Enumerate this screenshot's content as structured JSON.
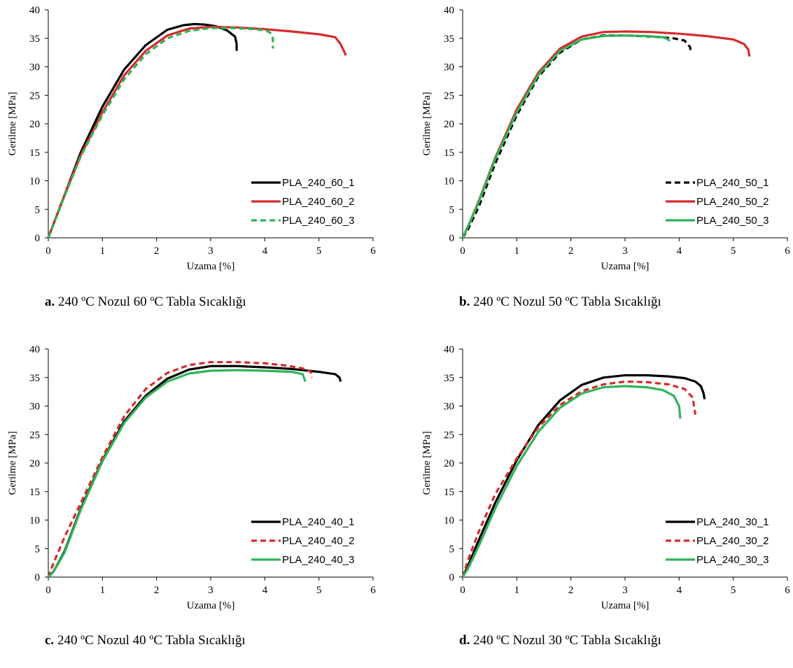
{
  "chart_data": [
    {
      "type": "line",
      "panel_label": "a.",
      "caption": "240 ºC Nozul 60 ºC Tabla Sıcaklığı",
      "xlabel": "Uzama [%]",
      "ylabel": "Gerilme [MPa]",
      "xlim": [
        0,
        6
      ],
      "ylim": [
        0,
        40
      ],
      "xticks": [
        0,
        1,
        2,
        3,
        4,
        5,
        6
      ],
      "yticks": [
        0,
        5,
        10,
        15,
        20,
        25,
        30,
        35,
        40
      ],
      "legend_position": "bottom-right",
      "series": [
        {
          "name": "PLA_240_60_1",
          "color": "#000000",
          "dash": "solid",
          "x": [
            0,
            0.1,
            0.3,
            0.6,
            1.0,
            1.4,
            1.8,
            2.2,
            2.5,
            2.7,
            2.9,
            3.1,
            3.3,
            3.45,
            3.48,
            3.48
          ],
          "y": [
            0,
            2.5,
            7.5,
            15,
            23,
            29.5,
            33.8,
            36.5,
            37.3,
            37.5,
            37.4,
            37.1,
            36.4,
            35.3,
            34,
            32.8
          ]
        },
        {
          "name": "PLA_240_60_2",
          "color": "#d62a2a",
          "dash": "solid",
          "x": [
            0,
            0.1,
            0.3,
            0.6,
            1.0,
            1.4,
            1.8,
            2.2,
            2.6,
            3.0,
            3.5,
            4.0,
            4.5,
            5.0,
            5.3,
            5.4,
            5.5
          ],
          "y": [
            0,
            2.5,
            7.5,
            14.5,
            22,
            28.5,
            32.8,
            35.5,
            36.7,
            37.0,
            36.9,
            36.6,
            36.2,
            35.7,
            35.2,
            34,
            32
          ]
        },
        {
          "name": "PLA_240_60_3",
          "color": "#2fb35a",
          "dash": "dashed",
          "x": [
            0,
            0.1,
            0.3,
            0.6,
            1.0,
            1.4,
            1.8,
            2.2,
            2.6,
            3.0,
            3.4,
            3.8,
            4.0,
            4.1,
            4.15,
            4.15
          ],
          "y": [
            0,
            2.4,
            7.3,
            14.3,
            21.5,
            27.8,
            32.2,
            35.0,
            36.3,
            36.8,
            36.8,
            36.6,
            36.4,
            36.0,
            35,
            33.2
          ]
        }
      ]
    },
    {
      "type": "line",
      "panel_label": "b.",
      "caption": "240 ºC Nozul 50 ºC Tabla Sıcaklığı",
      "xlabel": "Uzama [%]",
      "ylabel": "Gerilme [MPa]",
      "xlim": [
        0,
        6
      ],
      "ylim": [
        0,
        40
      ],
      "xticks": [
        0,
        1,
        2,
        3,
        4,
        5,
        6
      ],
      "yticks": [
        0,
        5,
        10,
        15,
        20,
        25,
        30,
        35,
        40
      ],
      "legend_position": "bottom-right",
      "series": [
        {
          "name": "PLA_240_50_1",
          "color": "#000000",
          "dash": "dashed",
          "x": [
            0,
            0.1,
            0.3,
            0.6,
            1.0,
            1.4,
            1.8,
            2.2,
            2.6,
            3.0,
            3.5,
            3.9,
            4.1,
            4.2,
            4.22
          ],
          "y": [
            0,
            1.5,
            5.5,
            13,
            21.5,
            28.3,
            32.5,
            34.8,
            35.5,
            35.5,
            35.3,
            35.0,
            34.6,
            33.5,
            32.5
          ]
        },
        {
          "name": "PLA_240_50_2",
          "color": "#d62a2a",
          "dash": "solid",
          "x": [
            0,
            0.1,
            0.3,
            0.6,
            1.0,
            1.4,
            1.8,
            2.2,
            2.6,
            3.0,
            3.5,
            4.0,
            4.5,
            5.0,
            5.2,
            5.28,
            5.3
          ],
          "y": [
            0,
            2,
            6.5,
            14,
            22.5,
            29,
            33.2,
            35.3,
            36.1,
            36.2,
            36.1,
            35.8,
            35.4,
            34.8,
            34,
            33,
            31.8
          ]
        },
        {
          "name": "PLA_240_50_3",
          "color": "#2fb35a",
          "dash": "solid",
          "x": [
            0,
            0.1,
            0.3,
            0.6,
            1.0,
            1.4,
            1.8,
            2.2,
            2.6,
            3.0,
            3.4,
            3.7,
            3.8,
            3.82
          ],
          "y": [
            0,
            2,
            6.3,
            13.8,
            22,
            28.6,
            32.8,
            34.8,
            35.4,
            35.5,
            35.4,
            35.2,
            34.8,
            34.5
          ]
        }
      ]
    },
    {
      "type": "line",
      "panel_label": "c.",
      "caption": "240 ºC Nozul 40 ºC Tabla Sıcaklığı",
      "xlabel": "Uzama [%]",
      "ylabel": "Gerilme [MPa]",
      "xlim": [
        0,
        6
      ],
      "ylim": [
        0,
        40
      ],
      "xticks": [
        0,
        1,
        2,
        3,
        4,
        5,
        6
      ],
      "yticks": [
        0,
        5,
        10,
        15,
        20,
        25,
        30,
        35,
        40
      ],
      "legend_position": "bottom-right",
      "series": [
        {
          "name": "PLA_240_40_1",
          "color": "#000000",
          "dash": "solid",
          "x": [
            0,
            0.1,
            0.3,
            0.6,
            1.0,
            1.4,
            1.8,
            2.2,
            2.6,
            3.0,
            3.5,
            4.0,
            4.5,
            5.0,
            5.3,
            5.38,
            5.4
          ],
          "y": [
            0,
            1,
            4.5,
            12,
            20.5,
            27.3,
            31.8,
            34.8,
            36.4,
            37.0,
            37.0,
            36.8,
            36.5,
            36.0,
            35.6,
            35,
            34.3
          ]
        },
        {
          "name": "PLA_240_40_2",
          "color": "#d62a2a",
          "dash": "dashed",
          "x": [
            0,
            0.1,
            0.3,
            0.6,
            1.0,
            1.4,
            1.8,
            2.2,
            2.6,
            3.0,
            3.5,
            4.0,
            4.4,
            4.7,
            4.85,
            4.87
          ],
          "y": [
            0,
            2.5,
            7,
            13,
            21,
            28.2,
            33,
            35.8,
            37.2,
            37.7,
            37.7,
            37.5,
            37.1,
            36.6,
            36,
            35
          ]
        },
        {
          "name": "PLA_240_40_3",
          "color": "#2fb35a",
          "dash": "solid",
          "x": [
            0,
            0.1,
            0.3,
            0.6,
            1.0,
            1.4,
            1.8,
            2.2,
            2.6,
            3.0,
            3.5,
            4.0,
            4.5,
            4.7,
            4.75
          ],
          "y": [
            0,
            1,
            4.3,
            11.8,
            20.3,
            27,
            31.5,
            34.3,
            35.7,
            36.2,
            36.3,
            36.2,
            36.0,
            35.6,
            34.3
          ]
        }
      ]
    },
    {
      "type": "line",
      "panel_label": "d.",
      "caption": "240 ºC Nozul 30 ºC Tabla Sıcaklığı",
      "xlabel": "Uzama [%]",
      "ylabel": "Gerilme [MPa]",
      "xlim": [
        0,
        6
      ],
      "ylim": [
        0,
        40
      ],
      "xticks": [
        0,
        1,
        2,
        3,
        4,
        5,
        6
      ],
      "yticks": [
        0,
        5,
        10,
        15,
        20,
        25,
        30,
        35,
        40
      ],
      "legend_position": "bottom-right",
      "series": [
        {
          "name": "PLA_240_30_1",
          "color": "#000000",
          "dash": "solid",
          "x": [
            0,
            0.1,
            0.3,
            0.6,
            1.0,
            1.4,
            1.8,
            2.2,
            2.6,
            3.0,
            3.4,
            3.8,
            4.1,
            4.3,
            4.4,
            4.45,
            4.47
          ],
          "y": [
            0,
            2,
            6.5,
            13,
            20.5,
            26.7,
            31,
            33.7,
            35.0,
            35.4,
            35.4,
            35.2,
            34.9,
            34.3,
            33.5,
            32.3,
            31.2
          ]
        },
        {
          "name": "PLA_240_30_2",
          "color": "#d62a2a",
          "dash": "dashed",
          "x": [
            0,
            0.1,
            0.3,
            0.6,
            1.0,
            1.4,
            1.8,
            2.2,
            2.6,
            3.0,
            3.4,
            3.8,
            4.1,
            4.25,
            4.3
          ],
          "y": [
            0,
            3,
            8,
            14.5,
            20.8,
            26.3,
            30.2,
            32.6,
            33.8,
            34.3,
            34.2,
            33.8,
            33.0,
            31.5,
            28.5
          ]
        },
        {
          "name": "PLA_240_30_3",
          "color": "#2fb35a",
          "dash": "solid",
          "x": [
            0,
            0.1,
            0.3,
            0.6,
            1.0,
            1.4,
            1.8,
            2.2,
            2.6,
            3.0,
            3.4,
            3.7,
            3.9,
            4.0,
            4.02
          ],
          "y": [
            0,
            1.5,
            5.5,
            12,
            19.5,
            25.5,
            29.7,
            32.2,
            33.3,
            33.5,
            33.3,
            32.8,
            31.8,
            30,
            27.8
          ]
        }
      ]
    }
  ]
}
